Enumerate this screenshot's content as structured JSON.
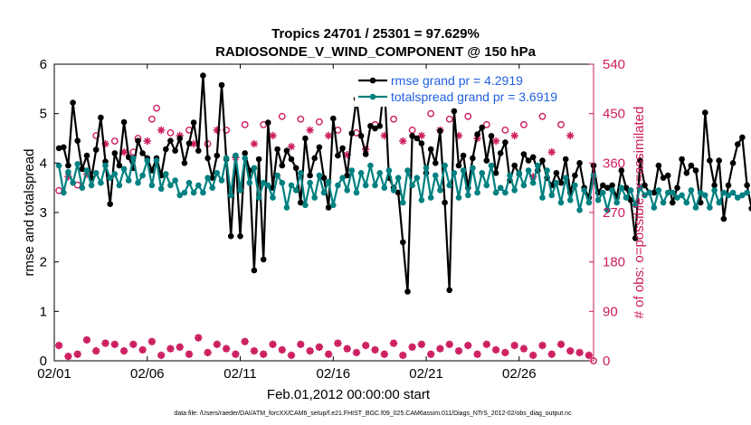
{
  "chart_data": {
    "type": "line",
    "title_line1": "Tropics 24701 / 25301 = 97.629%",
    "title_line2": "RADIOSONDE_V_WIND_COMPONENT @ 150 hPa",
    "xlabel": "Feb.01,2012 00:00:00 start",
    "ylabel_left": "rmse and totalspread",
    "ylabel_right": "# of obs: o=possible; ×=assimilated",
    "footer": "data file: /Users/raeder/DAI/ATM_forcXX/CAM6_setup/f.e21.FHIST_BGC.f09_025.CAM6assim.011/Diags_NTrS_2012-02/obs_diag_output.nc",
    "x_range_days": [
      0,
      29
    ],
    "x_ticks": [
      {
        "day": 0,
        "label": "02/01"
      },
      {
        "day": 5,
        "label": "02/06"
      },
      {
        "day": 10,
        "label": "02/11"
      },
      {
        "day": 15,
        "label": "02/16"
      },
      {
        "day": 20,
        "label": "02/21"
      },
      {
        "day": 25,
        "label": "02/26"
      }
    ],
    "y_left_range": [
      0,
      6
    ],
    "y_left_ticks": [
      "0",
      "1",
      "2",
      "3",
      "4",
      "5",
      "6"
    ],
    "y_right_range": [
      0,
      540
    ],
    "y_right_ticks": [
      "0",
      "90",
      "180",
      "270",
      "360",
      "450",
      "540"
    ],
    "legend": [
      {
        "label": "rmse grand pr = 4.2919",
        "color": "#000000"
      },
      {
        "label": "totalspread grand pr = 3.6919",
        "color": "#008080"
      }
    ],
    "colors": {
      "rmse": "#000000",
      "spread": "#008080",
      "obs": "#cc1c5f"
    },
    "x_start_day": 0.25,
    "x_step_day": 0.25,
    "series": [
      {
        "name": "rmse",
        "values": [
          4.3,
          4.32,
          3.95,
          5.22,
          4.45,
          3.88,
          4.15,
          3.7,
          4.27,
          4.92,
          4.03,
          3.17,
          4.2,
          3.95,
          4.83,
          4.12,
          3.9,
          4.45,
          4.2,
          4.1,
          3.85,
          4.1,
          3.75,
          4.28,
          4.45,
          4.25,
          4.5,
          4.0,
          4.4,
          4.82,
          4.25,
          5.77,
          4.1,
          3.7,
          4.15,
          5.58,
          4.08,
          2.52,
          4.15,
          2.52,
          4.2,
          3.85,
          1.83,
          4.08,
          2.05,
          4.82,
          3.5,
          4.28,
          3.95,
          4.25,
          4.08,
          3.9,
          3.2,
          4.5,
          3.75,
          4.1,
          4.32,
          3.7,
          3.1,
          4.9,
          4.15,
          4.3,
          3.75,
          4.6,
          5.3,
          4.55,
          4.18,
          4.75,
          4.7,
          4.75,
          5.62,
          3.7,
          3.5,
          3.4,
          2.4,
          1.4,
          4.55,
          4.5,
          4.4,
          3.8,
          4.28,
          4.0,
          4.65,
          3.2,
          1.43,
          5.05,
          3.95,
          4.15,
          3.5,
          4.1,
          4.58,
          4.72,
          4.05,
          4.55,
          3.8,
          4.2,
          4.42,
          3.65,
          3.95,
          3.78,
          4.18,
          4.05,
          4.12,
          3.85,
          4.05,
          3.7,
          3.55,
          3.8,
          3.6,
          4.08,
          3.4,
          3.75,
          4.0,
          3.5,
          3.3,
          3.95,
          3.4,
          3.55,
          3.5,
          3.55,
          3.3,
          3.85,
          3.5,
          3.25,
          2.48,
          4.05,
          3.55,
          3.4,
          3.4,
          3.95,
          3.7,
          3.75,
          3.2,
          3.5,
          4.08,
          3.8,
          3.95,
          3.85,
          3.2,
          5.02,
          4.05,
          3.55,
          4.05,
          2.87,
          3.55,
          4.0,
          4.38,
          4.52,
          3.55,
          3.08
        ]
      },
      {
        "name": "totalspread",
        "values": [
          3.95,
          3.4,
          3.82,
          3.6,
          3.98,
          3.5,
          3.85,
          3.55,
          3.8,
          3.6,
          3.95,
          3.7,
          3.78,
          3.55,
          3.88,
          3.65,
          4.1,
          3.6,
          3.75,
          4.05,
          3.55,
          4.05,
          3.48,
          3.78,
          3.55,
          3.65,
          3.35,
          3.4,
          3.6,
          3.4,
          3.55,
          3.4,
          3.7,
          3.5,
          3.8,
          3.65,
          4.1,
          3.35,
          4.15,
          3.45,
          4.1,
          3.6,
          3.9,
          3.3,
          3.6,
          3.55,
          3.3,
          3.75,
          3.6,
          3.1,
          3.55,
          3.45,
          3.8,
          3.15,
          3.6,
          3.3,
          3.75,
          3.4,
          3.62,
          3.15,
          3.55,
          3.7,
          3.45,
          3.85,
          3.4,
          3.8,
          3.55,
          3.95,
          3.55,
          3.8,
          3.5,
          3.85,
          3.45,
          3.7,
          3.2,
          3.85,
          3.55,
          3.7,
          3.25,
          3.9,
          3.3,
          3.75,
          3.45,
          3.95,
          3.55,
          3.8,
          3.3,
          3.85,
          3.35,
          3.9,
          3.4,
          3.8,
          3.55,
          3.95,
          3.4,
          3.5,
          3.4,
          3.75,
          3.45,
          3.8,
          3.55,
          3.85,
          3.6,
          3.95,
          3.3,
          3.85,
          3.35,
          3.6,
          3.2,
          3.7,
          3.25,
          3.55,
          3.05,
          3.45,
          3.2,
          3.75,
          3.25,
          3.4,
          3.05,
          3.45,
          3.2,
          3.5,
          3.3,
          3.45,
          3.15,
          3.5,
          3.35,
          3.4,
          3.1,
          3.45,
          3.2,
          3.4,
          3.4,
          3.3,
          3.35,
          3.2,
          3.45,
          3.1,
          3.4,
          3.35,
          3.1,
          3.45,
          3.2,
          3.4,
          3.35,
          3.4,
          3.3,
          3.35,
          3.4
        ]
      }
    ],
    "obs_possible_days": [
      0.25,
      1.25,
      2.25,
      3.25,
      4.25,
      4.5,
      5.25,
      5.5,
      6.25,
      7.25,
      8.25,
      9.25,
      10.25,
      11.25,
      12.25,
      13.25,
      14.25,
      15.25,
      16.25,
      17.25,
      18.25,
      19.25,
      20.25,
      21.25,
      22.25,
      23.25,
      24.25,
      25.25,
      26.25,
      27.25
    ],
    "obs_possible_counts": [
      310,
      320,
      410,
      400,
      380,
      405,
      440,
      460,
      415,
      420,
      395,
      420,
      430,
      430,
      445,
      440,
      435,
      420,
      415,
      430,
      440,
      420,
      450,
      440,
      445,
      430,
      420,
      430,
      445,
      430
    ],
    "obs_assimilated_days": [
      0.75,
      1.75,
      2.75,
      3.75,
      5.0,
      5.75,
      6.75,
      7.5,
      8.75,
      9.75,
      10.75,
      11.75,
      12.75,
      13.75,
      14.75,
      15.75,
      16.75,
      17.75,
      18.75,
      19.75,
      20.75,
      21.75,
      22.75,
      23.75,
      24.75,
      25.75,
      26.75,
      27.75
    ],
    "obs_assimilated_counts": [
      335,
      340,
      395,
      380,
      400,
      420,
      410,
      395,
      420,
      370,
      395,
      410,
      390,
      420,
      410,
      375,
      385,
      410,
      400,
      410,
      420,
      410,
      405,
      400,
      410,
      335,
      380,
      410
    ],
    "obs_low_days": [
      0.25,
      0.75,
      1.25,
      1.75,
      2.25,
      2.75,
      3.25,
      3.75,
      4.25,
      4.75,
      5.25,
      5.75,
      6.25,
      6.75,
      7.25,
      7.75,
      8.25,
      8.75,
      9.25,
      9.75,
      10.25,
      10.75,
      11.25,
      11.75,
      12.25,
      12.75,
      13.25,
      13.75,
      14.25,
      14.75,
      15.25,
      15.75,
      16.25,
      16.75,
      17.25,
      17.75,
      18.25,
      18.75,
      19.25,
      19.75,
      20.25,
      20.75,
      21.25,
      21.75,
      22.25,
      22.75,
      23.25,
      23.75,
      24.25,
      24.75,
      25.25,
      25.75,
      26.25,
      26.75,
      27.25,
      27.75,
      28.25,
      28.75
    ],
    "obs_low_counts": [
      28,
      8,
      12,
      38,
      18,
      32,
      30,
      18,
      30,
      20,
      35,
      10,
      22,
      25,
      12,
      42,
      15,
      30,
      22,
      12,
      35,
      18,
      12,
      30,
      20,
      10,
      30,
      18,
      25,
      12,
      32,
      22,
      15,
      28,
      20,
      12,
      32,
      10,
      25,
      30,
      12,
      22,
      30,
      18,
      28,
      12,
      30,
      20,
      15,
      28,
      22,
      10,
      28,
      12,
      30,
      18,
      15,
      10
    ]
  }
}
